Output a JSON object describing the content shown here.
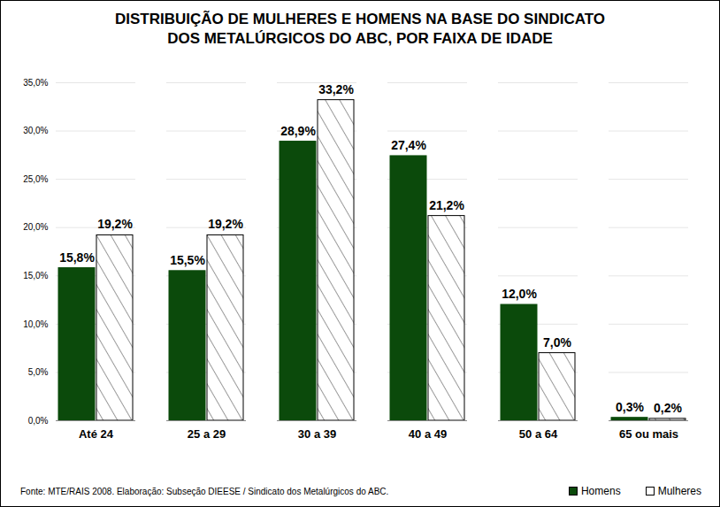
{
  "chart_data": {
    "type": "bar",
    "title": "DISTRIBUIÇÃO DE MULHERES E HOMENS NA BASE DO SINDICATO\nDOS METALÚRGICOS DO ABC, POR FAIXA DE IDADE",
    "source": "Fonte:  MTE/RAIS 2008. Elaboração: Subseção DIEESE /  Sindicato dos Metalúrgicos do ABC.",
    "categories": [
      "Até 24",
      "25 a 29",
      "30 a 39",
      "40 a 49",
      "50 a 64",
      "65 ou mais"
    ],
    "series": [
      {
        "name": "Homens",
        "color": "#0b4a0b",
        "values": [
          15.8,
          15.5,
          28.9,
          27.4,
          12.0,
          0.3
        ],
        "value_labels": [
          "15,8%",
          "15,5%",
          "28,9%",
          "27,4%",
          "12,0%",
          "0,3%"
        ]
      },
      {
        "name": "Mulheres",
        "color": "#ffffff",
        "values": [
          19.2,
          19.2,
          33.2,
          21.2,
          7.0,
          0.2
        ],
        "value_labels": [
          "19,2%",
          "19,2%",
          "33,2%",
          "21,2%",
          "7,0%",
          "0,2%"
        ]
      }
    ],
    "ylim": [
      0,
      35
    ],
    "yticks": [
      {
        "value": 0,
        "label": "0,0%"
      },
      {
        "value": 5,
        "label": "5,0%"
      },
      {
        "value": 10,
        "label": "10,0%"
      },
      {
        "value": 15,
        "label": "15,0%"
      },
      {
        "value": 20,
        "label": "20,0%"
      },
      {
        "value": 25,
        "label": "25,0%"
      },
      {
        "value": 30,
        "label": "30,0%"
      },
      {
        "value": 35,
        "label": "35,0%"
      }
    ],
    "grid": true,
    "data_labels": true,
    "legend": "bottom"
  }
}
